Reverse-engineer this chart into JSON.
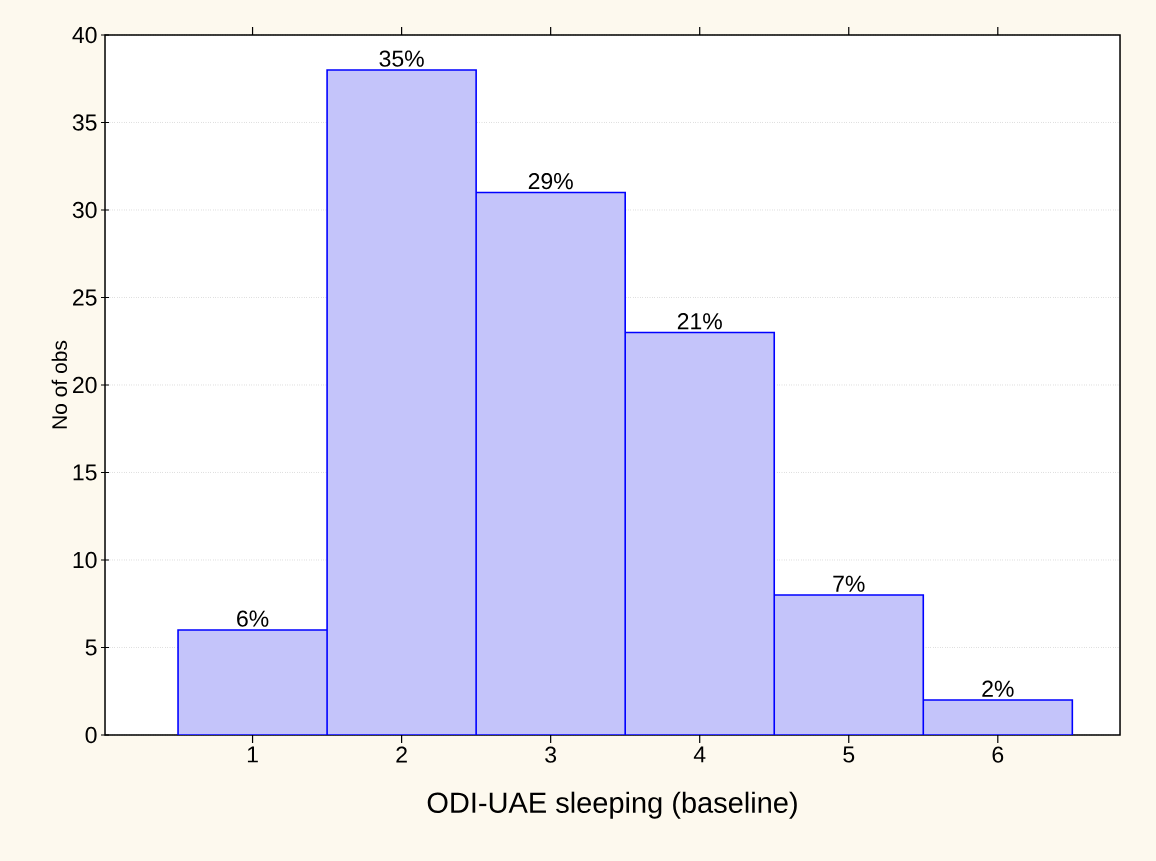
{
  "chart_data": {
    "type": "bar",
    "xlabel": "ODI-UAE sleeping (baseline)",
    "ylabel": "No of obs",
    "categories": [
      "1",
      "2",
      "3",
      "4",
      "5",
      "6"
    ],
    "values": [
      6,
      38,
      31,
      23,
      8,
      2
    ],
    "annotations": [
      {
        "text": "6%",
        "x": "1",
        "y": 6
      },
      {
        "text": "35%",
        "x": "2",
        "y": 38
      },
      {
        "text": "29%",
        "x": "3",
        "y": 31
      },
      {
        "text": "21%",
        "x": "4",
        "y": 23
      },
      {
        "text": "7%",
        "x": "5",
        "y": 8
      },
      {
        "text": "2%",
        "x": "6",
        "y": 2
      }
    ],
    "color": "#c4c4fa",
    "ylim": [
      0,
      40
    ],
    "yticks": [
      0,
      5,
      10,
      15,
      20,
      25,
      30,
      35,
      40
    ],
    "grid": "y"
  }
}
